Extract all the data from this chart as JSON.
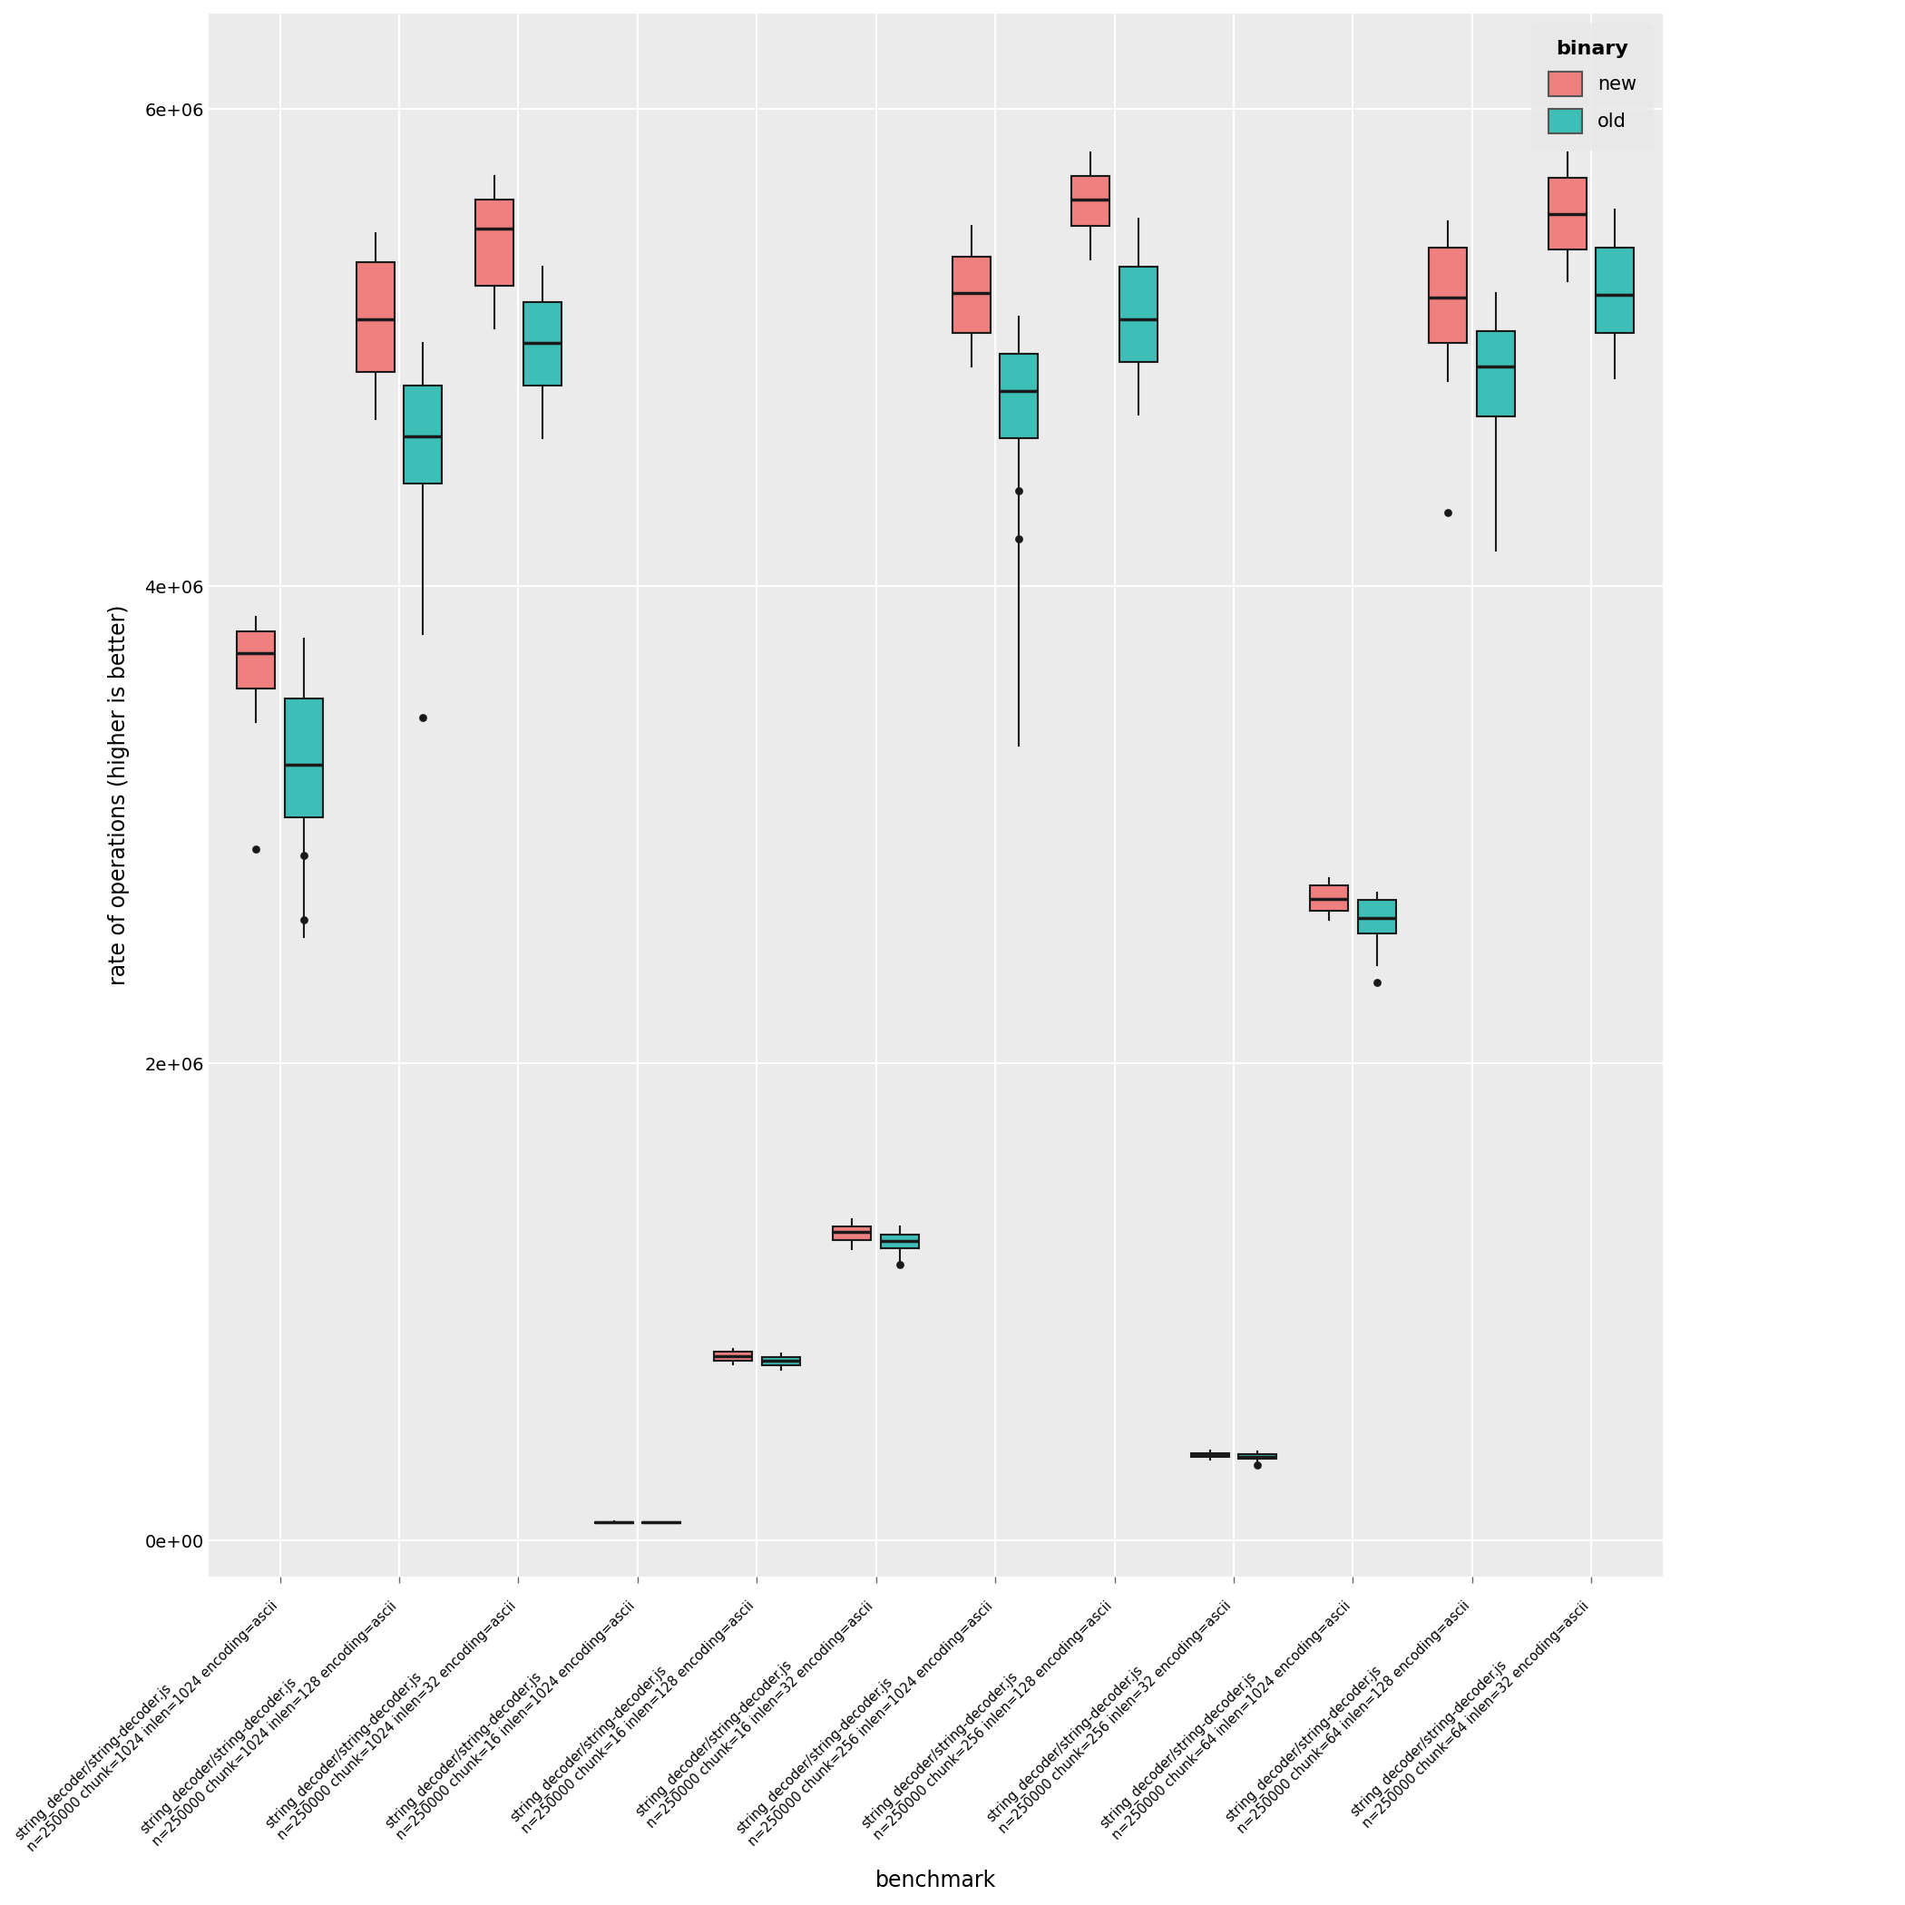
{
  "xlabel": "benchmark",
  "ylabel": "rate of operations (higher is better)",
  "background_color": "#EBEBEB",
  "panel_color": "#EBEBEB",
  "new_color": "#F08080",
  "old_color": "#3DBFB8",
  "ylim": [
    -150000,
    6400000
  ],
  "yticks": [
    0,
    2000000,
    4000000,
    6000000
  ],
  "ytick_labels": [
    "0e+00",
    "2e+06",
    "4e+06",
    "6e+06"
  ],
  "legend_title": "binary",
  "legend_labels": [
    "new",
    "old"
  ],
  "categories": [
    "string_decoder/string-decoder.js\nn=250000 chunk=1024 inlen=1024 encoding=ascii",
    "string_decoder/string-decoder.js\nn=250000 chunk=1024 inlen=128 encoding=ascii",
    "string_decoder/string-decoder.js\nn=250000 chunk=1024 inlen=32 encoding=ascii",
    "string_decoder/string-decoder.js\nn=250000 chunk=16 inlen=1024 encoding=ascii",
    "string_decoder/string-decoder.js\nn=250000 chunk=16 inlen=128 encoding=ascii",
    "string_decoder/string-decoder.js\nn=250000 chunk=16 inlen=32 encoding=ascii",
    "string_decoder/string-decoder.js\nn=250000 chunk=256 inlen=1024 encoding=ascii",
    "string_decoder/string-decoder.js\nn=250000 chunk=256 inlen=128 encoding=ascii",
    "string_decoder/string-decoder.js\nn=250000 chunk=256 inlen=32 encoding=ascii",
    "string_decoder/string-decoder.js\nn=250000 chunk=64 inlen=1024 encoding=ascii",
    "string_decoder/string-decoder.js\nn=250000 chunk=64 inlen=128 encoding=ascii",
    "string_decoder/string-decoder.js\nn=250000 chunk=64 inlen=32 encoding=ascii"
  ],
  "new_boxes": [
    {
      "q1": 3570000,
      "median": 3720000,
      "q3": 3810000,
      "whislo": 3430000,
      "whishi": 3870000,
      "fliers": [
        2900000
      ]
    },
    {
      "q1": 4900000,
      "median": 5120000,
      "q3": 5360000,
      "whislo": 4700000,
      "whishi": 5480000,
      "fliers": []
    },
    {
      "q1": 5260000,
      "median": 5500000,
      "q3": 5620000,
      "whislo": 5080000,
      "whishi": 5720000,
      "fliers": []
    },
    {
      "q1": 75000,
      "median": 77000,
      "q3": 78500,
      "whislo": 73500,
      "whishi": 79500,
      "fliers": []
    },
    {
      "q1": 755000,
      "median": 773000,
      "q3": 790000,
      "whislo": 738000,
      "whishi": 805000,
      "fliers": []
    },
    {
      "q1": 1260000,
      "median": 1293000,
      "q3": 1318000,
      "whislo": 1220000,
      "whishi": 1345000,
      "fliers": []
    },
    {
      "q1": 5060000,
      "median": 5230000,
      "q3": 5380000,
      "whislo": 4920000,
      "whishi": 5510000,
      "fliers": []
    },
    {
      "q1": 5510000,
      "median": 5620000,
      "q3": 5720000,
      "whislo": 5370000,
      "whishi": 5820000,
      "fliers": []
    },
    {
      "q1": 350000,
      "median": 358000,
      "q3": 366000,
      "whislo": 340000,
      "whishi": 377000,
      "fliers": []
    },
    {
      "q1": 2640000,
      "median": 2690000,
      "q3": 2745000,
      "whislo": 2600000,
      "whishi": 2775000,
      "fliers": []
    },
    {
      "q1": 5020000,
      "median": 5210000,
      "q3": 5420000,
      "whislo": 4860000,
      "whishi": 5530000,
      "fliers": [
        4310000
      ]
    },
    {
      "q1": 5410000,
      "median": 5560000,
      "q3": 5710000,
      "whislo": 5280000,
      "whishi": 5820000,
      "fliers": []
    }
  ],
  "old_boxes": [
    {
      "q1": 3030000,
      "median": 3250000,
      "q3": 3530000,
      "whislo": 2530000,
      "whishi": 3780000,
      "fliers": [
        2600000,
        2870000
      ]
    },
    {
      "q1": 4430000,
      "median": 4630000,
      "q3": 4840000,
      "whislo": 3800000,
      "whishi": 5020000,
      "fliers": [
        3450000
      ]
    },
    {
      "q1": 4840000,
      "median": 5020000,
      "q3": 5190000,
      "whislo": 4620000,
      "whishi": 5340000,
      "fliers": []
    },
    {
      "q1": 74500,
      "median": 76000,
      "q3": 77200,
      "whislo": 73000,
      "whishi": 78500,
      "fliers": []
    },
    {
      "q1": 736000,
      "median": 752000,
      "q3": 768000,
      "whislo": 717000,
      "whishi": 783000,
      "fliers": []
    },
    {
      "q1": 1225000,
      "median": 1255000,
      "q3": 1282000,
      "whislo": 1160000,
      "whishi": 1316000,
      "fliers": [
        1155000
      ]
    },
    {
      "q1": 4620000,
      "median": 4820000,
      "q3": 4975000,
      "whislo": 3330000,
      "whishi": 5130000,
      "fliers": [
        4200000,
        4400000
      ]
    },
    {
      "q1": 4940000,
      "median": 5120000,
      "q3": 5340000,
      "whislo": 4720000,
      "whishi": 5540000,
      "fliers": []
    },
    {
      "q1": 342000,
      "median": 352000,
      "q3": 361000,
      "whislo": 327000,
      "whishi": 373000,
      "fliers": [
        318000
      ]
    },
    {
      "q1": 2545000,
      "median": 2610000,
      "q3": 2685000,
      "whislo": 2410000,
      "whishi": 2715000,
      "fliers": [
        2340000
      ]
    },
    {
      "q1": 4710000,
      "median": 4920000,
      "q3": 5070000,
      "whislo": 4150000,
      "whishi": 5230000,
      "fliers": []
    },
    {
      "q1": 5060000,
      "median": 5220000,
      "q3": 5420000,
      "whislo": 4870000,
      "whishi": 5580000,
      "fliers": []
    }
  ]
}
